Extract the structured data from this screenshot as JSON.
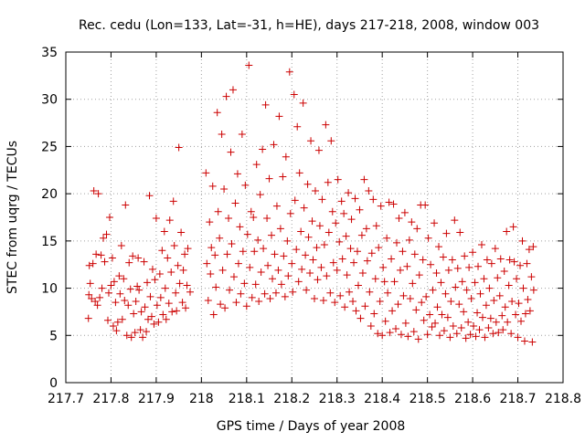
{
  "chart_data": {
    "type": "scatter",
    "title": "Rec. cedu (Lon=133, Lat=-31, h=HE), days 217-218, 2008, window 003",
    "xlabel": "GPS time / Days of year 2008",
    "ylabel": "STEC from uqrg / TECUs",
    "xlim": [
      217.7,
      218.8
    ],
    "ylim": [
      0,
      35
    ],
    "xticks": [
      "217.7",
      "217.8",
      "217.9",
      "218",
      "218.1",
      "218.2",
      "218.3",
      "218.4",
      "218.5",
      "218.6",
      "218.7",
      "218.8"
    ],
    "yticks": [
      "0",
      "5",
      "10",
      "15",
      "20",
      "25",
      "30",
      "35"
    ],
    "grid": true,
    "marker": "plus",
    "color": "#cc0000",
    "points": [
      [
        217.75,
        6.8
      ],
      [
        217.751,
        9.3
      ],
      [
        217.752,
        12.4
      ],
      [
        217.754,
        10.5
      ],
      [
        217.757,
        8.9
      ],
      [
        217.76,
        12.6
      ],
      [
        217.762,
        20.3
      ],
      [
        217.765,
        8.6
      ],
      [
        217.767,
        13.6
      ],
      [
        217.77,
        8.2
      ],
      [
        217.772,
        20.0
      ],
      [
        217.775,
        9.0
      ],
      [
        217.778,
        13.5
      ],
      [
        217.78,
        10.0
      ],
      [
        217.783,
        15.3
      ],
      [
        217.786,
        12.8
      ],
      [
        217.79,
        15.7
      ],
      [
        217.793,
        6.6
      ],
      [
        217.795,
        9.5
      ],
      [
        217.797,
        17.5
      ],
      [
        217.8,
        10.3
      ],
      [
        217.803,
        13.2
      ],
      [
        217.805,
        6.0
      ],
      [
        217.807,
        10.7
      ],
      [
        217.81,
        8.5
      ],
      [
        217.812,
        5.5
      ],
      [
        217.815,
        6.4
      ],
      [
        217.818,
        11.3
      ],
      [
        217.82,
        9.4
      ],
      [
        217.823,
        14.5
      ],
      [
        217.825,
        6.7
      ],
      [
        217.828,
        11.0
      ],
      [
        217.83,
        8.7
      ],
      [
        217.832,
        18.8
      ],
      [
        217.835,
        5.0
      ],
      [
        217.838,
        8.2
      ],
      [
        217.84,
        12.7
      ],
      [
        217.843,
        9.9
      ],
      [
        217.845,
        4.8
      ],
      [
        217.848,
        13.4
      ],
      [
        217.85,
        7.3
      ],
      [
        217.853,
        5.3
      ],
      [
        217.855,
        8.6
      ],
      [
        217.858,
        10.2
      ],
      [
        217.86,
        13.2
      ],
      [
        217.862,
        9.8
      ],
      [
        217.865,
        5.6
      ],
      [
        217.867,
        7.5
      ],
      [
        217.87,
        4.8
      ],
      [
        217.873,
        12.8
      ],
      [
        217.875,
        8.0
      ],
      [
        217.878,
        5.4
      ],
      [
        217.88,
        10.6
      ],
      [
        217.882,
        6.7
      ],
      [
        217.885,
        19.8
      ],
      [
        217.887,
        9.1
      ],
      [
        217.89,
        7.0
      ],
      [
        217.892,
        12.0
      ],
      [
        217.895,
        6.2
      ],
      [
        217.897,
        10.9
      ],
      [
        217.9,
        17.4
      ],
      [
        217.902,
        8.2
      ],
      [
        217.905,
        6.4
      ],
      [
        217.908,
        11.5
      ],
      [
        217.91,
        9.0
      ],
      [
        217.913,
        14.0
      ],
      [
        217.915,
        7.2
      ],
      [
        217.918,
        16.0
      ],
      [
        217.92,
        10.0
      ],
      [
        217.922,
        6.7
      ],
      [
        217.925,
        13.2
      ],
      [
        217.928,
        8.4
      ],
      [
        217.93,
        17.2
      ],
      [
        217.933,
        11.7
      ],
      [
        217.935,
        7.5
      ],
      [
        217.938,
        19.2
      ],
      [
        217.94,
        14.5
      ],
      [
        217.943,
        9.5
      ],
      [
        217.945,
        7.6
      ],
      [
        217.948,
        12.4
      ],
      [
        217.95,
        24.9
      ],
      [
        217.952,
        10.5
      ],
      [
        217.955,
        15.9
      ],
      [
        217.958,
        8.5
      ],
      [
        217.96,
        11.9
      ],
      [
        217.963,
        13.6
      ],
      [
        217.965,
        7.9
      ],
      [
        217.968,
        10.3
      ],
      [
        217.97,
        14.2
      ],
      [
        217.975,
        9.6
      ],
      [
        218.01,
        22.2
      ],
      [
        218.012,
        12.6
      ],
      [
        218.015,
        8.7
      ],
      [
        218.018,
        17.0
      ],
      [
        218.02,
        11.5
      ],
      [
        218.022,
        14.3
      ],
      [
        218.025,
        20.8
      ],
      [
        218.027,
        7.2
      ],
      [
        218.03,
        13.5
      ],
      [
        218.032,
        10.1
      ],
      [
        218.035,
        28.6
      ],
      [
        218.037,
        18.1
      ],
      [
        218.04,
        15.3
      ],
      [
        218.042,
        8.3
      ],
      [
        218.045,
        26.3
      ],
      [
        218.047,
        11.9
      ],
      [
        218.05,
        20.5
      ],
      [
        218.052,
        7.9
      ],
      [
        218.055,
        30.3
      ],
      [
        218.057,
        13.6
      ],
      [
        218.06,
        17.4
      ],
      [
        218.062,
        9.8
      ],
      [
        218.065,
        24.4
      ],
      [
        218.067,
        14.7
      ],
      [
        218.07,
        31.0
      ],
      [
        218.072,
        11.2
      ],
      [
        218.075,
        19.0
      ],
      [
        218.077,
        8.5
      ],
      [
        218.08,
        22.1
      ],
      [
        218.082,
        12.6
      ],
      [
        218.085,
        16.5
      ],
      [
        218.087,
        9.4
      ],
      [
        218.09,
        26.3
      ],
      [
        218.092,
        13.9
      ],
      [
        218.095,
        10.5
      ],
      [
        218.097,
        20.9
      ],
      [
        218.1,
        8.1
      ],
      [
        218.102,
        15.7
      ],
      [
        218.105,
        33.6
      ],
      [
        218.107,
        12.2
      ],
      [
        218.11,
        18.1
      ],
      [
        218.112,
        9.0
      ],
      [
        218.115,
        17.5
      ],
      [
        218.117,
        13.9
      ],
      [
        218.12,
        10.4
      ],
      [
        218.122,
        23.1
      ],
      [
        218.125,
        15.1
      ],
      [
        218.127,
        8.6
      ],
      [
        218.13,
        19.9
      ],
      [
        218.132,
        11.7
      ],
      [
        218.135,
        24.7
      ],
      [
        218.137,
        14.2
      ],
      [
        218.14,
        9.4
      ],
      [
        218.142,
        29.4
      ],
      [
        218.145,
        17.4
      ],
      [
        218.147,
        12.4
      ],
      [
        218.15,
        21.6
      ],
      [
        218.152,
        8.9
      ],
      [
        218.155,
        15.6
      ],
      [
        218.157,
        11.0
      ],
      [
        218.16,
        25.2
      ],
      [
        218.162,
        13.6
      ],
      [
        218.165,
        9.5
      ],
      [
        218.167,
        18.7
      ],
      [
        218.17,
        11.9
      ],
      [
        218.172,
        28.2
      ],
      [
        218.175,
        16.3
      ],
      [
        218.177,
        10.4
      ],
      [
        218.18,
        21.8
      ],
      [
        218.182,
        13.4
      ],
      [
        218.185,
        9.1
      ],
      [
        218.187,
        23.9
      ],
      [
        218.19,
        15.0
      ],
      [
        218.192,
        11.3
      ],
      [
        218.195,
        32.9
      ],
      [
        218.197,
        17.9
      ],
      [
        218.2,
        12.6
      ],
      [
        218.202,
        9.6
      ],
      [
        218.205,
        30.5
      ],
      [
        218.207,
        19.3
      ],
      [
        218.21,
        14.1
      ],
      [
        218.212,
        27.1
      ],
      [
        218.215,
        10.7
      ],
      [
        218.217,
        22.2
      ],
      [
        218.22,
        16.0
      ],
      [
        218.222,
        12.0
      ],
      [
        218.225,
        29.6
      ],
      [
        218.227,
        18.5
      ],
      [
        218.23,
        13.5
      ],
      [
        218.232,
        9.8
      ],
      [
        218.235,
        21.0
      ],
      [
        218.237,
        15.4
      ],
      [
        218.24,
        11.6
      ],
      [
        218.242,
        25.6
      ],
      [
        218.245,
        17.1
      ],
      [
        218.247,
        13.0
      ],
      [
        218.25,
        8.9
      ],
      [
        218.252,
        20.3
      ],
      [
        218.255,
        14.3
      ],
      [
        218.257,
        10.9
      ],
      [
        218.26,
        24.6
      ],
      [
        218.262,
        16.6
      ],
      [
        218.265,
        12.2
      ],
      [
        218.267,
        19.4
      ],
      [
        218.27,
        8.7
      ],
      [
        218.272,
        14.6
      ],
      [
        218.275,
        27.3
      ],
      [
        218.277,
        11.3
      ],
      [
        218.28,
        21.2
      ],
      [
        218.282,
        15.9
      ],
      [
        218.285,
        9.5
      ],
      [
        218.287,
        25.6
      ],
      [
        218.29,
        18.1
      ],
      [
        218.292,
        12.7
      ],
      [
        218.295,
        8.5
      ],
      [
        218.297,
        16.9
      ],
      [
        218.3,
        11.9
      ],
      [
        218.302,
        21.5
      ],
      [
        218.305,
        14.9
      ],
      [
        218.307,
        9.2
      ],
      [
        218.31,
        19.2
      ],
      [
        218.312,
        13.1
      ],
      [
        218.315,
        17.9
      ],
      [
        218.317,
        8.0
      ],
      [
        218.32,
        15.5
      ],
      [
        218.322,
        11.4
      ],
      [
        218.325,
        20.1
      ],
      [
        218.327,
        9.6
      ],
      [
        218.33,
        14.2
      ],
      [
        218.332,
        17.3
      ],
      [
        218.335,
        8.6
      ],
      [
        218.337,
        12.7
      ],
      [
        218.34,
        19.5
      ],
      [
        218.342,
        7.6
      ],
      [
        218.345,
        13.9
      ],
      [
        218.347,
        10.3
      ],
      [
        218.35,
        18.3
      ],
      [
        218.352,
        6.8
      ],
      [
        218.355,
        15.6
      ],
      [
        218.357,
        11.6
      ],
      [
        218.36,
        21.5
      ],
      [
        218.362,
        8.1
      ],
      [
        218.365,
        16.3
      ],
      [
        218.367,
        12.9
      ],
      [
        218.37,
        20.3
      ],
      [
        218.372,
        9.6
      ],
      [
        218.375,
        6.0
      ],
      [
        218.377,
        13.7
      ],
      [
        218.38,
        19.4
      ],
      [
        218.382,
        7.3
      ],
      [
        218.385,
        11.0
      ],
      [
        218.387,
        16.6
      ],
      [
        218.39,
        5.2
      ],
      [
        218.392,
        14.3
      ],
      [
        218.395,
        8.6
      ],
      [
        218.397,
        18.7
      ],
      [
        218.4,
        5.0
      ],
      [
        218.402,
        12.2
      ],
      [
        218.405,
        10.7
      ],
      [
        218.407,
        6.5
      ],
      [
        218.41,
        15.3
      ],
      [
        218.412,
        9.5
      ],
      [
        218.415,
        19.1
      ],
      [
        218.417,
        5.3
      ],
      [
        218.42,
        13.1
      ],
      [
        218.422,
        7.6
      ],
      [
        218.425,
        18.9
      ],
      [
        218.427,
        10.7
      ],
      [
        218.43,
        5.7
      ],
      [
        218.432,
        14.8
      ],
      [
        218.435,
        8.3
      ],
      [
        218.437,
        17.4
      ],
      [
        218.44,
        11.9
      ],
      [
        218.442,
        5.1
      ],
      [
        218.445,
        13.9
      ],
      [
        218.447,
        9.2
      ],
      [
        218.45,
        18.0
      ],
      [
        218.452,
        6.3
      ],
      [
        218.455,
        12.3
      ],
      [
        218.457,
        4.9
      ],
      [
        218.46,
        15.1
      ],
      [
        218.462,
        8.9
      ],
      [
        218.465,
        17.0
      ],
      [
        218.467,
        10.5
      ],
      [
        218.47,
        5.4
      ],
      [
        218.472,
        13.6
      ],
      [
        218.475,
        7.7
      ],
      [
        218.477,
        16.3
      ],
      [
        218.48,
        4.6
      ],
      [
        218.482,
        11.4
      ],
      [
        218.485,
        18.8
      ],
      [
        218.487,
        8.5
      ],
      [
        218.49,
        13.0
      ],
      [
        218.492,
        6.6
      ],
      [
        218.495,
        18.8
      ],
      [
        218.497,
        9.1
      ],
      [
        218.5,
        5.1
      ],
      [
        218.502,
        15.3
      ],
      [
        218.505,
        7.2
      ],
      [
        218.507,
        12.5
      ],
      [
        218.51,
        5.9
      ],
      [
        218.512,
        9.8
      ],
      [
        218.515,
        16.9
      ],
      [
        218.517,
        6.3
      ],
      [
        218.52,
        11.6
      ],
      [
        218.522,
        8.0
      ],
      [
        218.525,
        14.4
      ],
      [
        218.527,
        5.0
      ],
      [
        218.53,
        10.6
      ],
      [
        218.532,
        7.2
      ],
      [
        218.535,
        13.3
      ],
      [
        218.537,
        5.5
      ],
      [
        218.54,
        9.4
      ],
      [
        218.542,
        15.8
      ],
      [
        218.545,
        6.9
      ],
      [
        218.547,
        11.9
      ],
      [
        218.55,
        4.8
      ],
      [
        218.552,
        8.6
      ],
      [
        218.555,
        13.0
      ],
      [
        218.557,
        6.0
      ],
      [
        218.56,
        17.2
      ],
      [
        218.562,
        10.1
      ],
      [
        218.565,
        5.2
      ],
      [
        218.567,
        12.1
      ],
      [
        218.57,
        8.3
      ],
      [
        218.572,
        15.9
      ],
      [
        218.575,
        5.8
      ],
      [
        218.577,
        10.7
      ],
      [
        218.58,
        7.5
      ],
      [
        218.582,
        13.4
      ],
      [
        218.585,
        4.7
      ],
      [
        218.587,
        9.8
      ],
      [
        218.59,
        6.4
      ],
      [
        218.592,
        12.2
      ],
      [
        218.595,
        5.1
      ],
      [
        218.597,
        8.9
      ],
      [
        218.6,
        13.8
      ],
      [
        218.602,
        6.0
      ],
      [
        218.605,
        10.6
      ],
      [
        218.607,
        4.9
      ],
      [
        218.61,
        7.4
      ],
      [
        218.612,
        12.3
      ],
      [
        218.615,
        5.6
      ],
      [
        218.617,
        9.4
      ],
      [
        218.62,
        14.6
      ],
      [
        218.622,
        6.9
      ],
      [
        218.625,
        11.0
      ],
      [
        218.627,
        4.8
      ],
      [
        218.63,
        8.2
      ],
      [
        218.632,
        13.0
      ],
      [
        218.635,
        5.8
      ],
      [
        218.637,
        10.0
      ],
      [
        218.64,
        6.8
      ],
      [
        218.642,
        12.6
      ],
      [
        218.645,
        5.2
      ],
      [
        218.647,
        8.7
      ],
      [
        218.65,
        14.2
      ],
      [
        218.652,
        6.4
      ],
      [
        218.655,
        11.1
      ],
      [
        218.657,
        5.3
      ],
      [
        218.66,
        9.2
      ],
      [
        218.662,
        13.1
      ],
      [
        218.665,
        7.1
      ],
      [
        218.667,
        5.6
      ],
      [
        218.67,
        11.8
      ],
      [
        218.672,
        8.0
      ],
      [
        218.675,
        16.0
      ],
      [
        218.677,
        6.4
      ],
      [
        218.68,
        10.3
      ],
      [
        218.682,
        13.0
      ],
      [
        218.685,
        5.2
      ],
      [
        218.687,
        8.6
      ],
      [
        218.69,
        16.5
      ],
      [
        218.692,
        12.8
      ],
      [
        218.695,
        7.2
      ],
      [
        218.697,
        11.0
      ],
      [
        218.7,
        4.8
      ],
      [
        218.702,
        8.4
      ],
      [
        218.705,
        12.4
      ],
      [
        218.707,
        6.5
      ],
      [
        218.71,
        15.0
      ],
      [
        218.712,
        10.0
      ],
      [
        218.715,
        4.4
      ],
      [
        218.717,
        7.3
      ],
      [
        218.72,
        12.6
      ],
      [
        218.722,
        8.8
      ],
      [
        218.725,
        14.1
      ],
      [
        218.727,
        7.6
      ],
      [
        218.73,
        11.2
      ],
      [
        218.732,
        4.3
      ],
      [
        218.734,
        14.4
      ],
      [
        218.735,
        9.8
      ]
    ]
  }
}
